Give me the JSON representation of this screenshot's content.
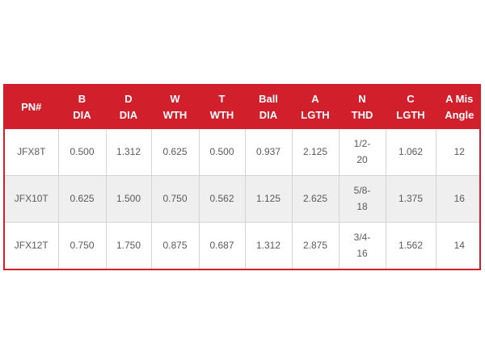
{
  "table": {
    "columns": [
      {
        "line1": "",
        "line2": "PN#"
      },
      {
        "line1": "B",
        "line2": "DIA"
      },
      {
        "line1": "D",
        "line2": "DIA"
      },
      {
        "line1": "W",
        "line2": "WTH"
      },
      {
        "line1": "T",
        "line2": "WTH"
      },
      {
        "line1": "Ball",
        "line2": "DIA"
      },
      {
        "line1": "A",
        "line2": "LGTH"
      },
      {
        "line1": "N",
        "line2": "THD"
      },
      {
        "line1": "C",
        "line2": "LGTH"
      },
      {
        "line1": "A Mis",
        "line2": "Angle"
      }
    ],
    "rows": [
      {
        "pn": "JFX8T",
        "b_dia": "0.500",
        "d_dia": "1.312",
        "w_wth": "0.625",
        "t_wth": "0.500",
        "ball_dia": "0.937",
        "a_lgth": "2.125",
        "n_thd_1": "1/2-",
        "n_thd_2": "20",
        "c_lgth": "1.062",
        "angle": "12"
      },
      {
        "pn": "JFX10T",
        "b_dia": "0.625",
        "d_dia": "1.500",
        "w_wth": "0.750",
        "t_wth": "0.562",
        "ball_dia": "1.125",
        "a_lgth": "2.625",
        "n_thd_1": "5/8-",
        "n_thd_2": "18",
        "c_lgth": "1.375",
        "angle": "16"
      },
      {
        "pn": "JFX12T",
        "b_dia": "0.750",
        "d_dia": "1.750",
        "w_wth": "0.875",
        "t_wth": "0.687",
        "ball_dia": "1.312",
        "a_lgth": "2.875",
        "n_thd_1": "3/4-",
        "n_thd_2": "16",
        "c_lgth": "1.562",
        "angle": "14"
      }
    ]
  },
  "colors": {
    "header_bg": "#d21f2c",
    "header_text": "#ffffff",
    "body_text": "#5a5a5a",
    "alt_row_bg": "#efefef"
  }
}
